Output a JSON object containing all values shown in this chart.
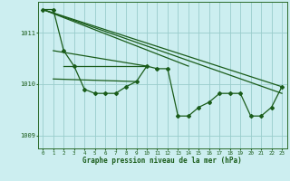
{
  "bg_color": "#cceef0",
  "grid_color": "#99cccc",
  "line_color": "#1a5c1a",
  "marker_color": "#1a5c1a",
  "xlabel": "Graphe pression niveau de la mer (hPa)",
  "xlabel_color": "#1a5c1a",
  "tick_color": "#1a5c1a",
  "xlim": [
    -0.5,
    23.5
  ],
  "ylim": [
    1008.75,
    1011.6
  ],
  "yticks": [
    1009,
    1010,
    1011
  ],
  "xticks": [
    0,
    1,
    2,
    3,
    4,
    5,
    6,
    7,
    8,
    9,
    10,
    11,
    12,
    13,
    14,
    15,
    16,
    17,
    18,
    19,
    20,
    21,
    22,
    23
  ],
  "series_with_markers": [
    [
      0,
      1011.45
    ],
    [
      1,
      1011.45
    ],
    [
      2,
      1010.65
    ],
    [
      3,
      1010.35
    ],
    [
      4,
      1009.9
    ],
    [
      5,
      1009.82
    ],
    [
      6,
      1009.82
    ],
    [
      7,
      1009.82
    ],
    [
      8,
      1009.95
    ],
    [
      9,
      1010.05
    ],
    [
      10,
      1010.35
    ],
    [
      11,
      1010.3
    ],
    [
      12,
      1010.3
    ],
    [
      13,
      1009.38
    ],
    [
      14,
      1009.38
    ],
    [
      15,
      1009.55
    ],
    [
      16,
      1009.65
    ],
    [
      17,
      1009.82
    ],
    [
      18,
      1009.82
    ],
    [
      19,
      1009.82
    ],
    [
      20,
      1009.38
    ],
    [
      21,
      1009.38
    ],
    [
      22,
      1009.55
    ],
    [
      23,
      1009.95
    ]
  ],
  "long_line1": [
    [
      0,
      1011.45
    ],
    [
      23,
      1009.82
    ]
  ],
  "long_line2": [
    [
      0,
      1011.45
    ],
    [
      23,
      1009.95
    ]
  ],
  "long_line3": [
    [
      0,
      1011.45
    ],
    [
      14,
      1010.35
    ]
  ],
  "short_lines": [
    [
      [
        1,
        1010.65
      ],
      [
        10,
        1010.35
      ]
    ],
    [
      [
        2,
        1010.35
      ],
      [
        10,
        1010.35
      ]
    ],
    [
      [
        1,
        1010.1
      ],
      [
        9,
        1010.05
      ]
    ]
  ]
}
